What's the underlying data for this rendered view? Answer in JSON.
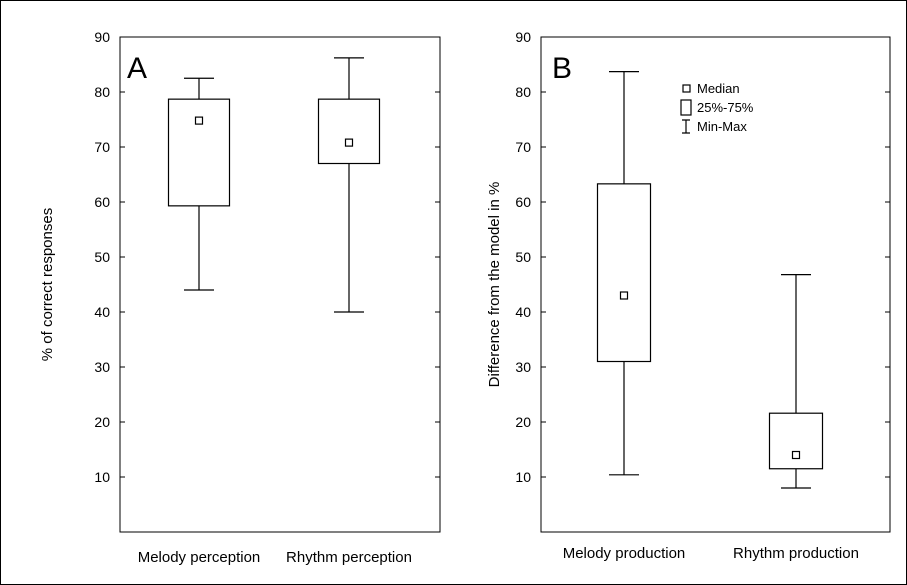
{
  "chart_data": [
    {
      "type": "box",
      "panel_label": "A",
      "ylabel": "% of correct responses",
      "ylim": [
        0,
        90
      ],
      "yticks": [
        10,
        20,
        30,
        40,
        50,
        60,
        70,
        80,
        90
      ],
      "categories": [
        "Melody perception",
        "Rhythm perception"
      ],
      "boxes": [
        {
          "category": "Melody perception",
          "min": 44,
          "q1": 59.3,
          "median": 74.8,
          "q3": 78.7,
          "max": 82.5
        },
        {
          "category": "Rhythm perception",
          "min": 40,
          "q1": 67,
          "median": 70.8,
          "q3": 78.7,
          "max": 86.2
        }
      ]
    },
    {
      "type": "box",
      "panel_label": "B",
      "ylabel": "Difference from the model in %",
      "ylim": [
        0,
        90
      ],
      "yticks": [
        10,
        20,
        30,
        40,
        50,
        60,
        70,
        80,
        90
      ],
      "categories": [
        "Melody production",
        "Rhythm production"
      ],
      "boxes": [
        {
          "category": "Melody production",
          "min": 10.4,
          "q1": 31,
          "median": 43,
          "q3": 63.3,
          "max": 83.7
        },
        {
          "category": "Rhythm production",
          "min": 8,
          "q1": 11.5,
          "median": 14,
          "q3": 21.6,
          "max": 46.8
        }
      ],
      "legend": {
        "position": "top-center",
        "entries": [
          "Median",
          "25%-75%",
          "Min-Max"
        ]
      }
    }
  ]
}
